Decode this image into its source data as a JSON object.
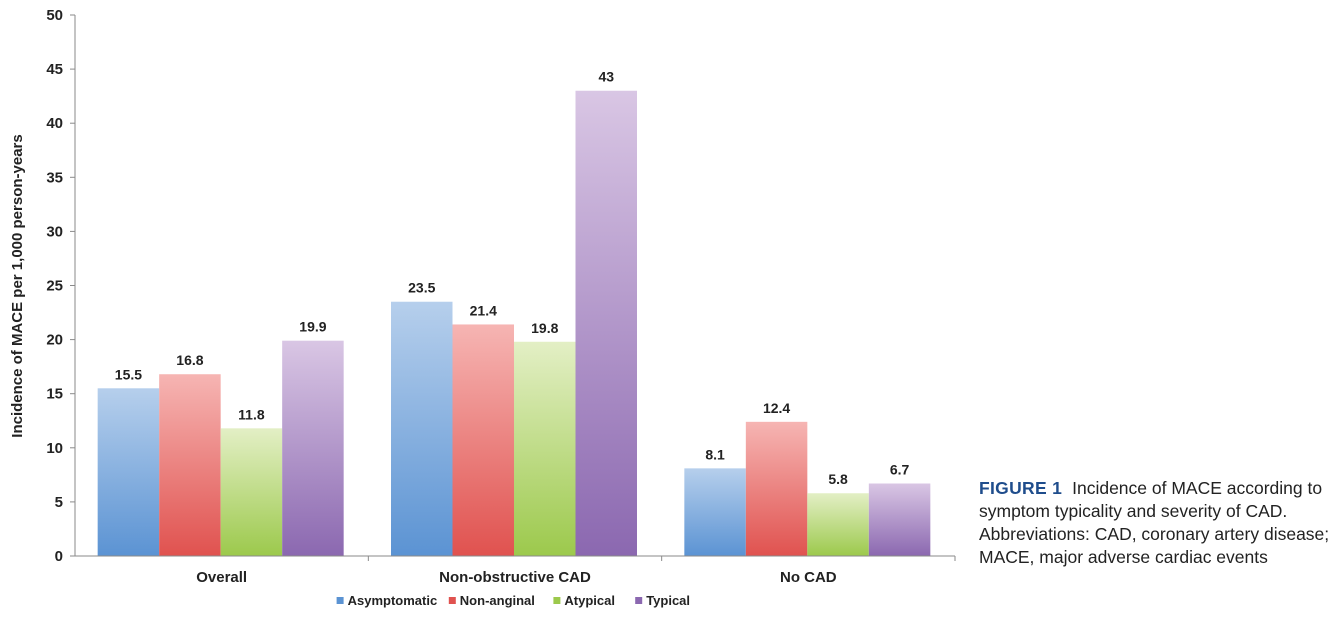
{
  "chart_data": {
    "type": "bar",
    "categories": [
      "Overall",
      "Non-obstructive CAD",
      "No CAD"
    ],
    "series": [
      {
        "name": "Asymptomatic",
        "values": [
          15.5,
          23.5,
          8.1
        ],
        "color": "#5b93d3",
        "color_light": "#b6cfec"
      },
      {
        "name": "Non-anginal",
        "values": [
          16.8,
          21.4,
          12.4
        ],
        "color": "#e0524f",
        "color_light": "#f6b5b3"
      },
      {
        "name": "Atypical",
        "values": [
          11.8,
          19.8,
          5.8
        ],
        "color": "#9cc94c",
        "color_light": "#e3efc5"
      },
      {
        "name": "Typical",
        "values": [
          19.9,
          43,
          6.7
        ],
        "color": "#8b68b0",
        "color_light": "#d9c6e4"
      }
    ],
    "data_labels": [
      [
        "15.5",
        "16.8",
        "11.8",
        "19.9"
      ],
      [
        "23.5",
        "21.4",
        "19.8",
        "43"
      ],
      [
        "8.1",
        "12.4",
        "5.8",
        "6.7"
      ]
    ],
    "ylabel": "Incidence of MACE per 1,000 person-years",
    "ylim": [
      0,
      50
    ],
    "yticks": [
      0,
      5,
      10,
      15,
      20,
      25,
      30,
      35,
      40,
      45,
      50
    ],
    "grid": false,
    "legend_position": "bottom"
  },
  "caption": {
    "label": "FIGURE 1",
    "text": "Incidence of MACE according to symptom typicality and severity of CAD. Abbreviations: CAD, coronary artery disease; MACE, major adverse cardiac events"
  }
}
